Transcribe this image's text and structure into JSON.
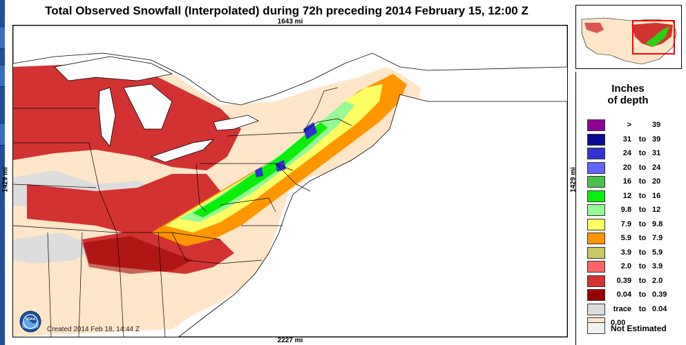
{
  "title": "Total Observed Snowfall (Interpolated) during 72h preceding 2014 February 15, 12:00 Z",
  "distances": {
    "top": "1643 mi",
    "bottom": "2227 mi",
    "left": "1429 mi",
    "right": "1429 mi"
  },
  "created": "Created 2014 Feb 18, 14:44 Z",
  "logo_text": "NOAA",
  "legend": {
    "title_line1": "Inches",
    "title_line2": "of depth",
    "rows": [
      {
        "lo": ">",
        "mid": "",
        "hi": "39",
        "color": "#8e0096"
      },
      {
        "lo": "31",
        "mid": "to",
        "hi": "39",
        "color": "#0b0b96"
      },
      {
        "lo": "24",
        "mid": "to",
        "hi": "31",
        "color": "#3232d2"
      },
      {
        "lo": "20",
        "mid": "to",
        "hi": "24",
        "color": "#6464ff"
      },
      {
        "lo": "16",
        "mid": "to",
        "hi": "20",
        "color": "#4cc04c"
      },
      {
        "lo": "12",
        "mid": "to",
        "hi": "16",
        "color": "#0aee0a"
      },
      {
        "lo": "9.8",
        "mid": "to",
        "hi": "12",
        "color": "#96fa96"
      },
      {
        "lo": "7.9",
        "mid": "to",
        "hi": "9.8",
        "color": "#ffff64"
      },
      {
        "lo": "5.9",
        "mid": "to",
        "hi": "7.9",
        "color": "#ff9600"
      },
      {
        "lo": "3.9",
        "mid": "to",
        "hi": "5.9",
        "color": "#c8c864"
      },
      {
        "lo": "2.0",
        "mid": "to",
        "hi": "3.9",
        "color": "#ff6464"
      },
      {
        "lo": "0.39",
        "mid": "to",
        "hi": "2.0",
        "color": "#d23232"
      },
      {
        "lo": "0.04",
        "mid": "to",
        "hi": "0.39",
        "color": "#960000"
      },
      {
        "lo": "trace",
        "mid": "to",
        "hi": "0.04",
        "color": "#dcdcdc"
      },
      {
        "lo": "0.00",
        "mid": "",
        "hi": "",
        "color": "#ffe6c8"
      }
    ],
    "not_estimated": "Not Estimated"
  },
  "colors": {
    "water": "#ffffff",
    "land_none": "#ffe6c8",
    "trace": "#dcdcdc",
    "light": "#960000",
    "moderate": "#d23232",
    "heavy": "#ff6464",
    "border": "#000000",
    "inset_box": "#ff0000"
  }
}
